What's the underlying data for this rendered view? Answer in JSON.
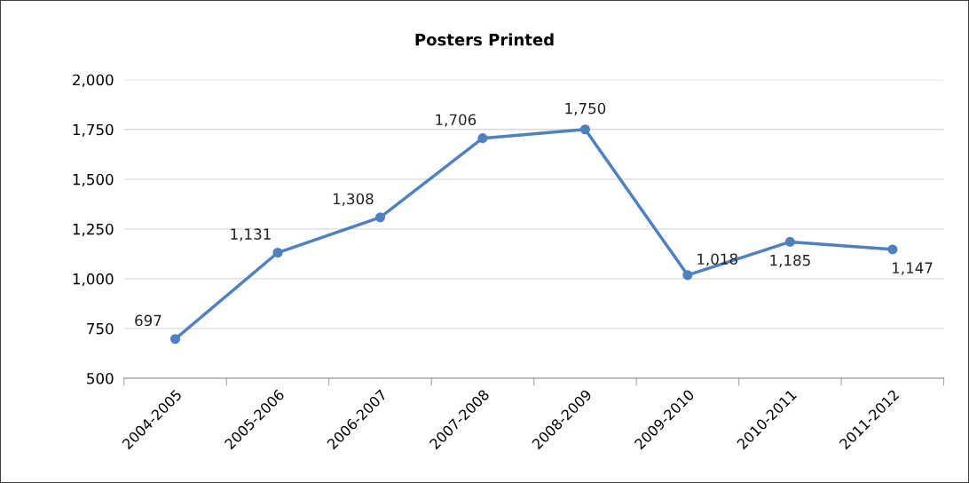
{
  "chart_data": {
    "type": "line",
    "title": "Posters Printed",
    "categories": [
      "2004-2005",
      "2005-2006",
      "2006-2007",
      "2007-2008",
      "2008-2009",
      "2009-2010",
      "2010-2011",
      "2011-2012"
    ],
    "series": [
      {
        "color": "#4f81bd",
        "values": [
          697,
          1131,
          1308,
          1706,
          1750,
          1018,
          1185,
          1147
        ],
        "value_labels": [
          "697",
          "1,131",
          "1,308",
          "1,706",
          "1,750",
          "1,018",
          "1,185",
          "1,147"
        ]
      }
    ],
    "ylim": [
      500,
      2000
    ],
    "yticks": [
      {
        "value": 500,
        "label": "500"
      },
      {
        "value": 750,
        "label": "750"
      },
      {
        "value": 1000,
        "label": "1,000"
      },
      {
        "value": 1250,
        "label": "1,250"
      },
      {
        "value": 1500,
        "label": "1,500"
      },
      {
        "value": 1750,
        "label": "1,750"
      },
      {
        "value": 2000,
        "label": "2,000"
      }
    ],
    "grid": "y",
    "marker": "circle",
    "line_style": "solid"
  }
}
